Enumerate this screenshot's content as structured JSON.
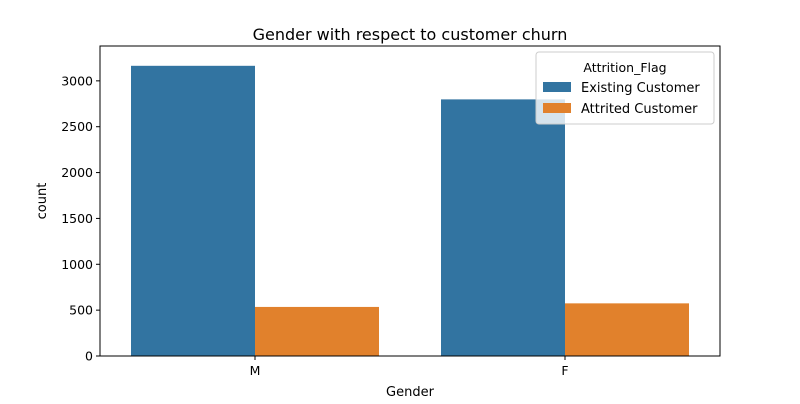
{
  "chart_data": {
    "type": "bar",
    "title": "Gender with respect to customer churn",
    "xlabel": "Gender",
    "ylabel": "count",
    "categories": [
      "M",
      "F"
    ],
    "series": [
      {
        "name": "Existing Customer",
        "color": "#3274a1",
        "values": [
          3164,
          2798
        ]
      },
      {
        "name": "Attrited Customer",
        "color": "#e1812c",
        "values": [
          535,
          574
        ]
      }
    ],
    "ylim": [
      0,
      3380
    ],
    "yticks": [
      0,
      500,
      1000,
      1500,
      2000,
      2500,
      3000
    ],
    "legend": {
      "title": "Attrition_Flag",
      "placement": "top-right"
    },
    "grid": false
  }
}
